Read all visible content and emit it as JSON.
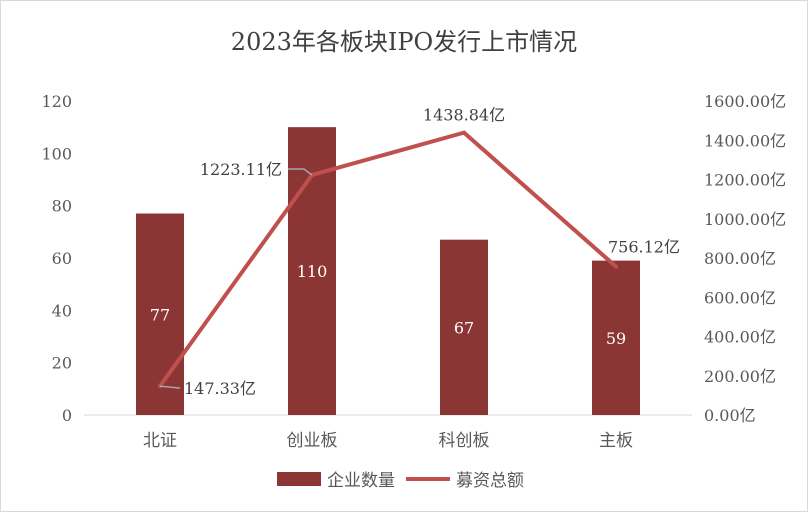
{
  "chart_data": {
    "type": "bar",
    "title": "2023年各板块IPO发行上市情况",
    "categories": [
      "北证",
      "创业板",
      "科创板",
      "主板"
    ],
    "series": [
      {
        "name": "企业数量",
        "type": "bar",
        "axis": "left",
        "values": [
          77,
          110,
          67,
          59
        ],
        "labels": [
          "77",
          "110",
          "67",
          "59"
        ],
        "color": "#8b3535"
      },
      {
        "name": "募资总额",
        "type": "line",
        "axis": "right",
        "values": [
          147.33,
          1223.11,
          1438.84,
          756.12
        ],
        "labels": [
          "147.33亿",
          "1223.11亿",
          "1438.84亿",
          "756.12亿"
        ],
        "color": "#c0504d"
      }
    ],
    "y_left": {
      "range": [
        0,
        120
      ],
      "ticks": [
        "0",
        "20",
        "40",
        "60",
        "80",
        "100",
        "120"
      ]
    },
    "y_right": {
      "range": [
        0,
        1600
      ],
      "ticks": [
        "0.00亿",
        "200.00亿",
        "400.00亿",
        "600.00亿",
        "800.00亿",
        "1000.00亿",
        "1200.00亿",
        "1400.00亿",
        "1600.00亿"
      ]
    },
    "grid": false,
    "legend_position": "bottom"
  }
}
